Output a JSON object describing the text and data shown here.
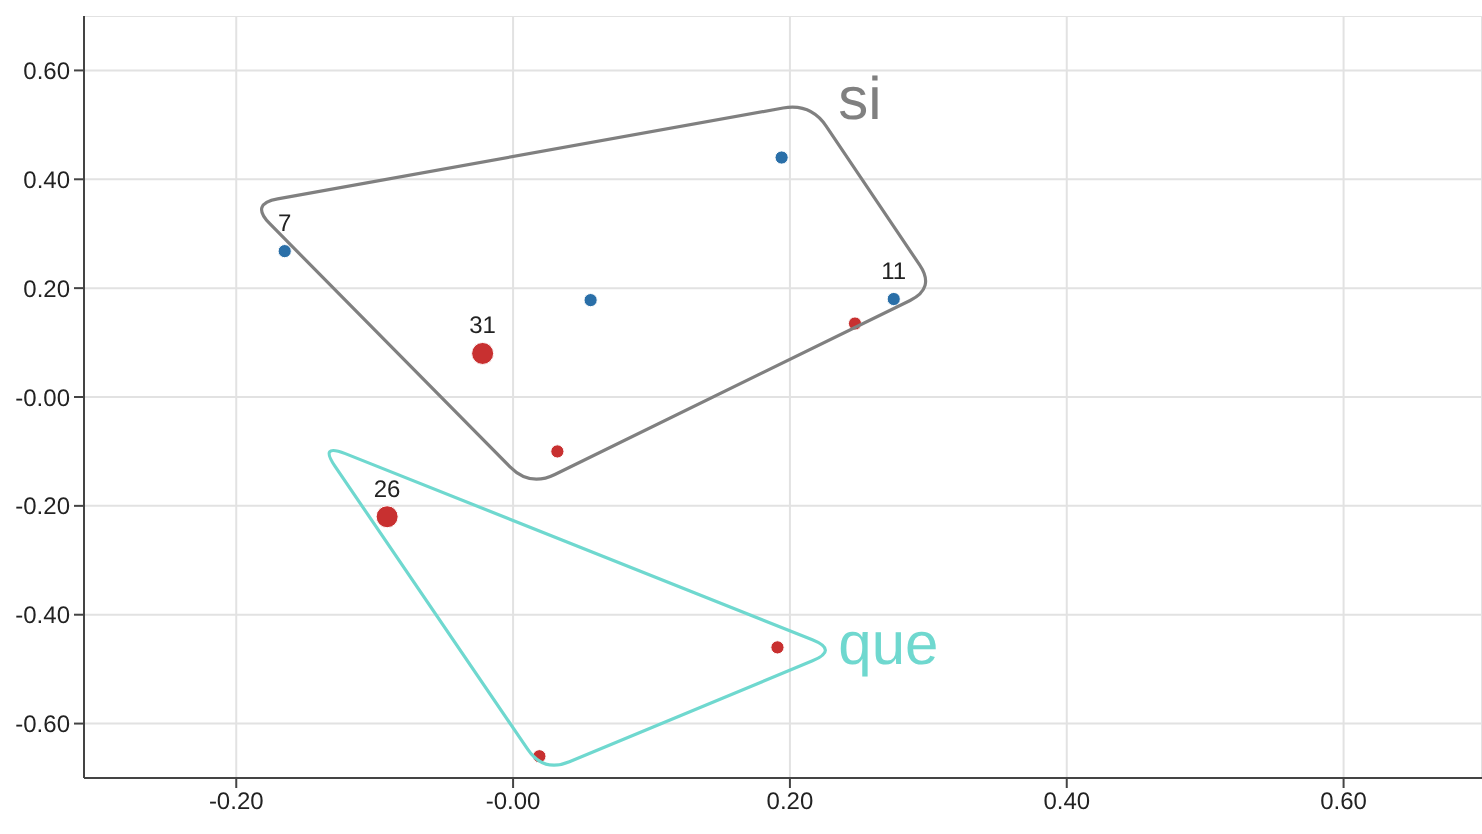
{
  "chart_data": {
    "type": "bubble",
    "xlim": [
      -0.31,
      0.7
    ],
    "ylim": [
      -0.7,
      0.7
    ],
    "xticks": [
      {
        "value": -0.2,
        "label": "-0.20"
      },
      {
        "value": 0,
        "label": "-0.00"
      },
      {
        "value": 0.2,
        "label": "0.20"
      },
      {
        "value": 0.4,
        "label": "0.40"
      },
      {
        "value": 0.6,
        "label": "0.60"
      }
    ],
    "yticks": [
      {
        "value": -0.6,
        "label": "-0.60"
      },
      {
        "value": -0.4,
        "label": "-0.40"
      },
      {
        "value": -0.2,
        "label": "-0.20"
      },
      {
        "value": 0,
        "label": "-0.00"
      },
      {
        "value": 0.2,
        "label": "0.20"
      },
      {
        "value": 0.4,
        "label": "0.40"
      },
      {
        "value": 0.6,
        "label": "0.60"
      }
    ],
    "grid": true,
    "legend": false,
    "series": [
      {
        "color": "#2a6fa8",
        "x": [
          -0.165,
          0.056,
          0.194,
          0.275
        ],
        "values": [
          0.268,
          0.178,
          0.44,
          0.18
        ],
        "sizes": [
          0.36,
          0.36,
          0.36,
          0.36
        ]
      },
      {
        "color": "#c83030",
        "x": [
          0.247,
          -0.022,
          0.032,
          -0.091,
          0.191,
          0.019
        ],
        "values": [
          0.135,
          0.08,
          -0.1,
          -0.22,
          -0.46,
          -0.66
        ],
        "sizes": [
          0.36,
          1,
          0.36,
          1,
          0.36,
          0.36
        ]
      }
    ],
    "annotations": [
      {
        "text": "7",
        "x": -0.165,
        "y": 0.268
      },
      {
        "text": "11",
        "x": 0.275,
        "y": 0.18
      },
      {
        "text": "31",
        "x": -0.022,
        "y": 0.08
      },
      {
        "text": "26",
        "x": -0.091,
        "y": -0.22
      },
      "si",
      "que"
    ]
  }
}
